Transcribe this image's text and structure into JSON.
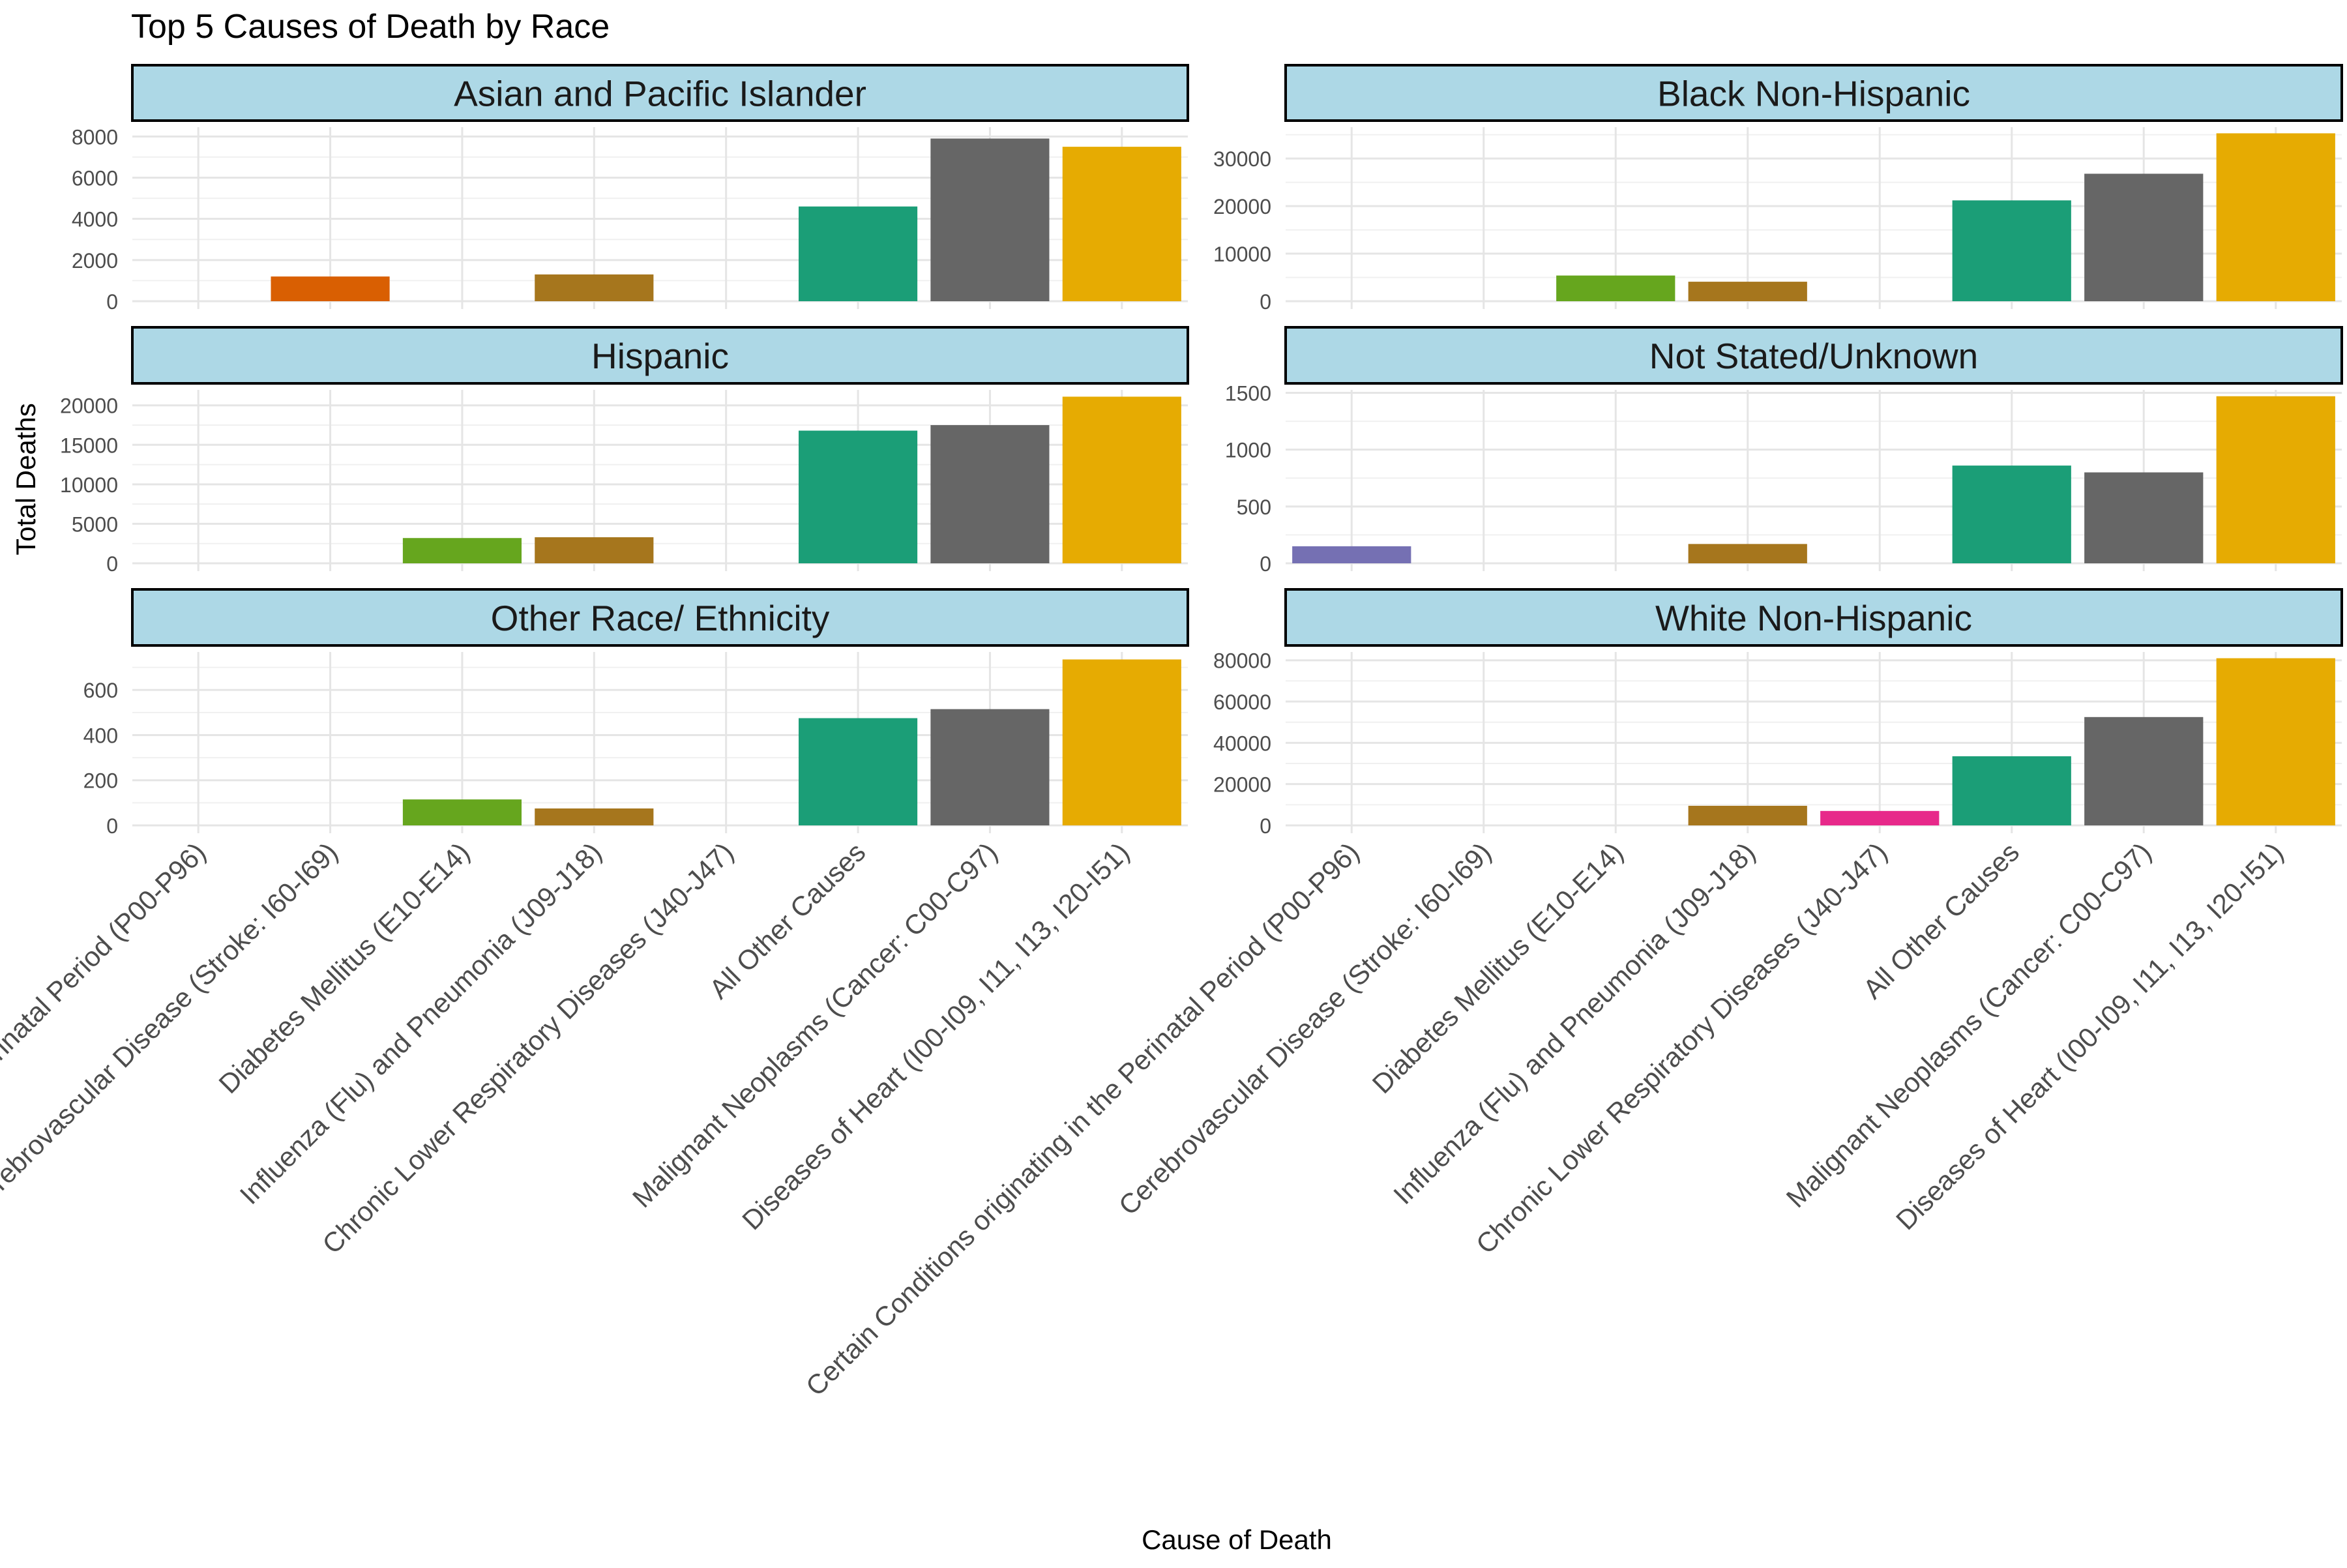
{
  "chart_data": {
    "type": "bar",
    "title": "Top 5 Causes of Death by Race",
    "xlabel": "Cause of Death",
    "ylabel": "Total Deaths",
    "grid": true,
    "legend": "none",
    "categories": [
      "Certain Conditions originating in the Perinatal Period (P00-P96)",
      "Cerebrovascular Disease (Stroke: I60-I69)",
      "Diabetes Mellitus (E10-E14)",
      "Influenza (Flu) and Pneumonia (J09-J18)",
      "Chronic Lower Respiratory Diseases (J40-J47)",
      "All Other Causes",
      "Malignant Neoplasms (Cancer: C00-C97)",
      "Diseases of Heart (I00-I09, I11, I13, I20-I51)"
    ],
    "category_colors": [
      "#7570b3",
      "#d95f02",
      "#66a61e",
      "#a6761d",
      "#e7298a",
      "#1b9e77",
      "#666666",
      "#e6ab02"
    ],
    "panels": [
      {
        "name": "Asian and Pacific Islander",
        "ylim": [
          0,
          8200
        ],
        "yticks": [
          0,
          2000,
          4000,
          6000,
          8000
        ],
        "values": [
          null,
          1200,
          null,
          1300,
          null,
          4600,
          7900,
          7500
        ]
      },
      {
        "name": "Black Non-Hispanic",
        "ylim": [
          0,
          35500
        ],
        "yticks": [
          0,
          10000,
          20000,
          30000
        ],
        "values": [
          null,
          null,
          5400,
          4100,
          null,
          21200,
          26800,
          35300
        ]
      },
      {
        "name": "Hispanic",
        "ylim": [
          0,
          21300
        ],
        "yticks": [
          0,
          5000,
          10000,
          15000,
          20000
        ],
        "values": [
          null,
          null,
          3200,
          3300,
          null,
          16800,
          17500,
          21100
        ]
      },
      {
        "name": "Not Stated/Unknown",
        "ylim": [
          0,
          1480
        ],
        "yticks": [
          0,
          500,
          1000,
          1500
        ],
        "values": [
          150,
          null,
          null,
          170,
          null,
          860,
          800,
          1470
        ]
      },
      {
        "name": "Other Race/ Ethnicity",
        "ylim": [
          0,
          745
        ],
        "yticks": [
          0,
          200,
          400,
          600
        ],
        "values": [
          null,
          null,
          115,
          75,
          null,
          475,
          515,
          735
        ]
      },
      {
        "name": "White Non-Hispanic",
        "ylim": [
          0,
          81500
        ],
        "yticks": [
          0,
          20000,
          40000,
          60000,
          80000
        ],
        "values": [
          null,
          null,
          null,
          9500,
          7000,
          33500,
          52500,
          81000
        ]
      }
    ]
  }
}
